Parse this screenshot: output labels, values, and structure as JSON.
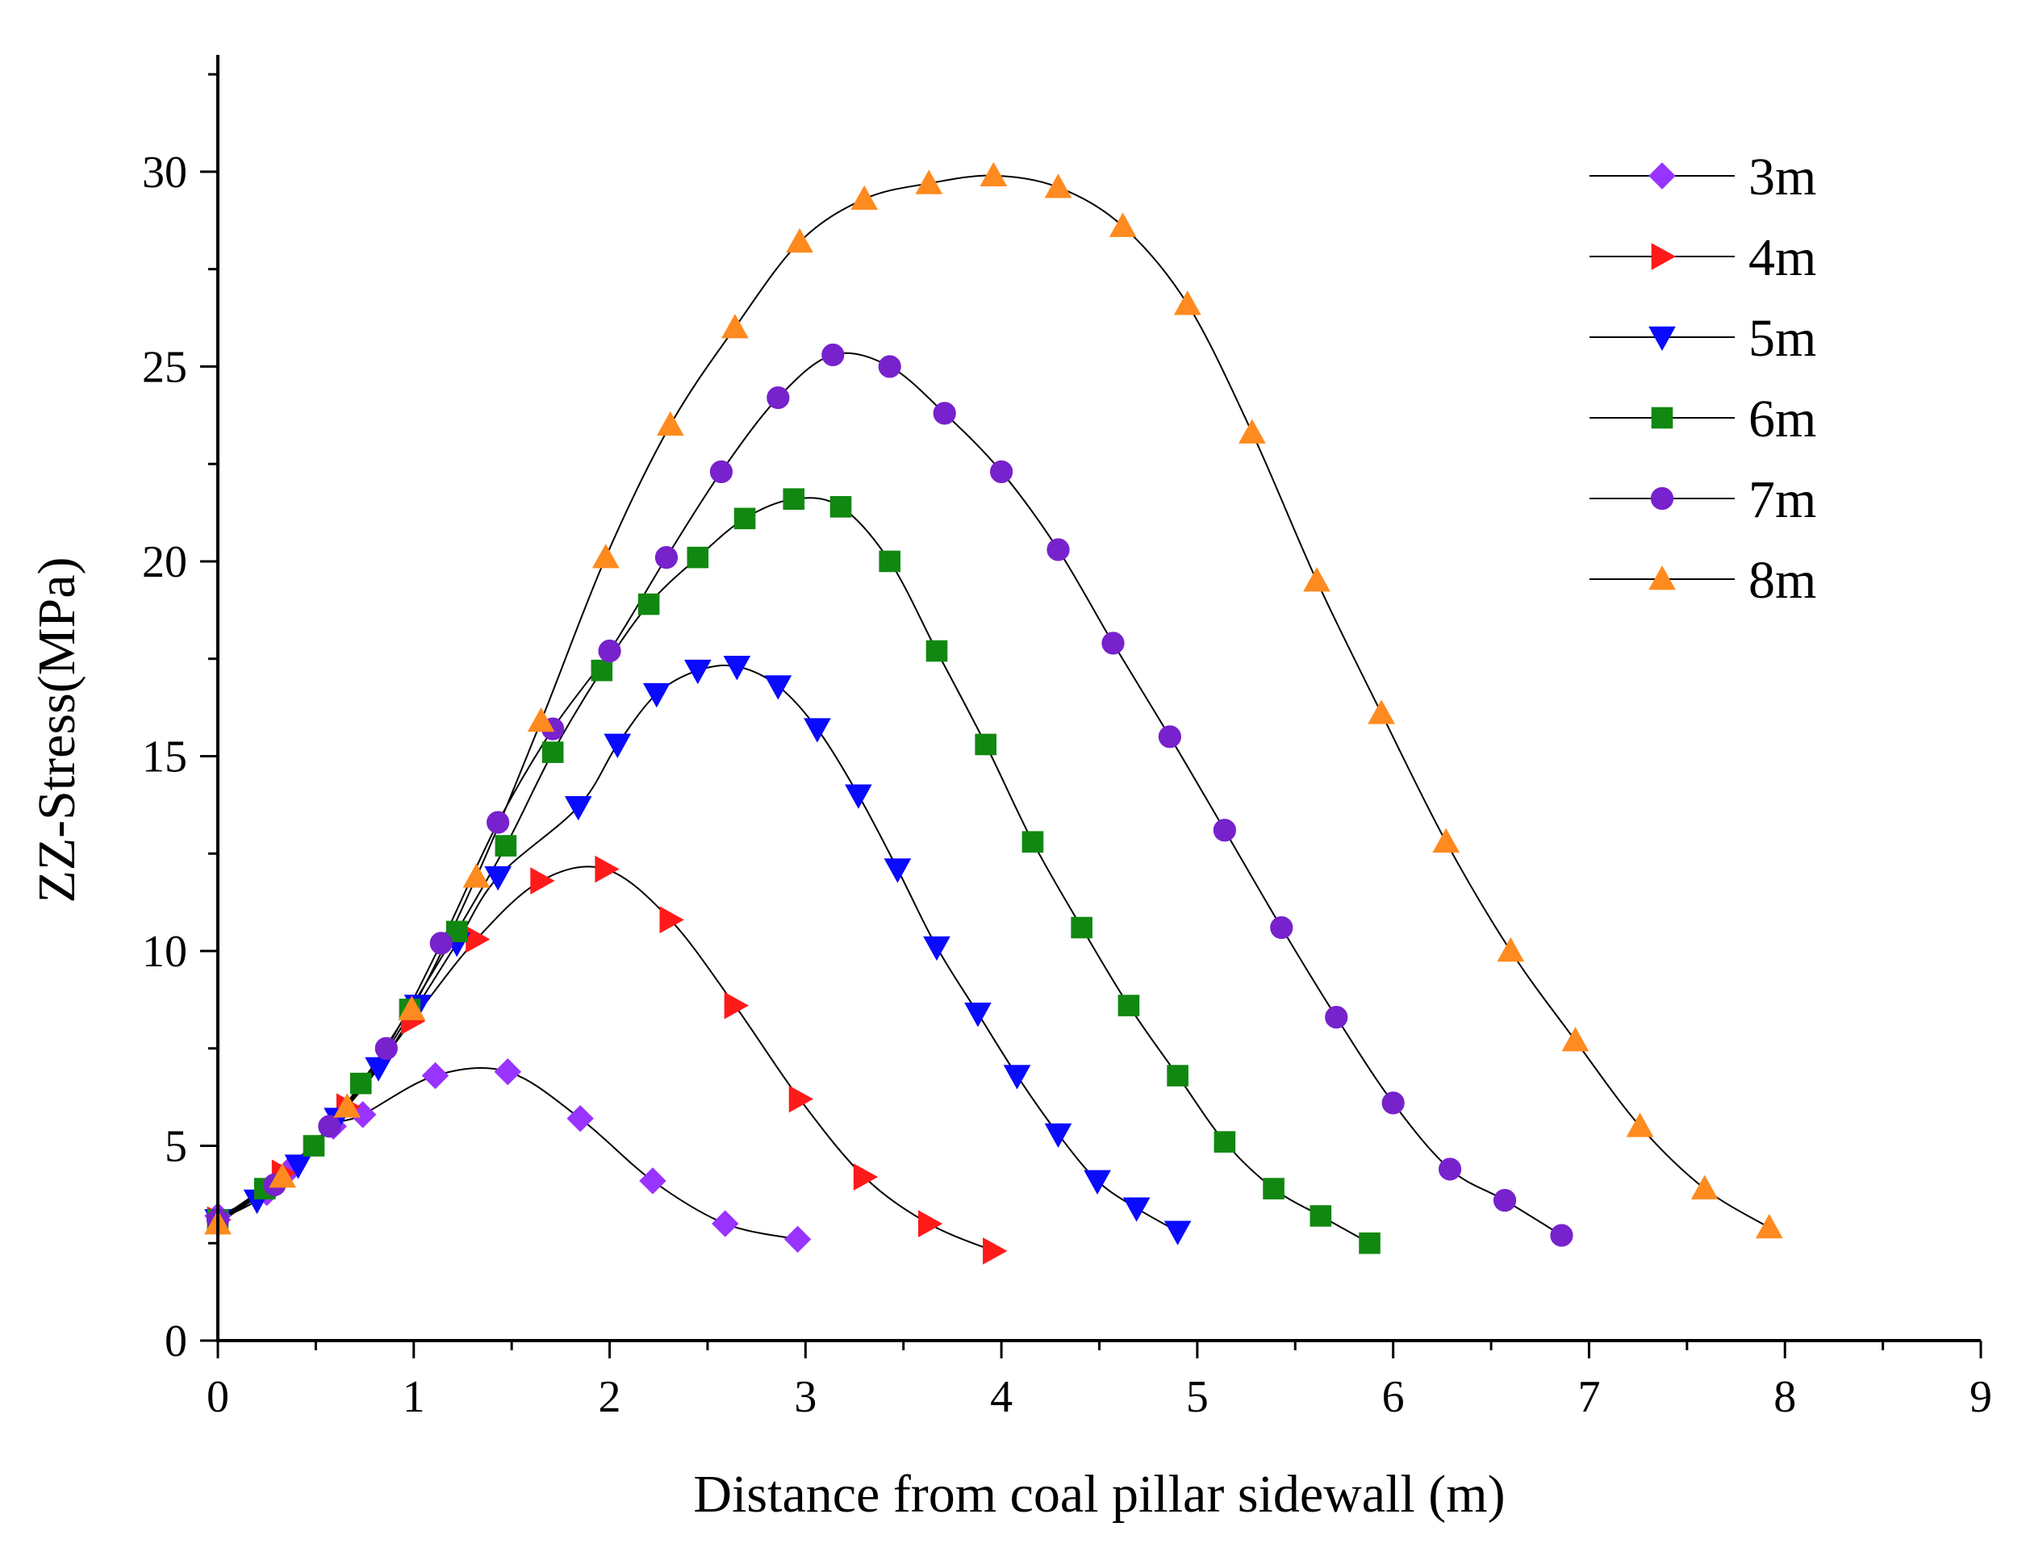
{
  "chart_data": {
    "type": "line",
    "title": "",
    "xlabel": "Distance from coal pillar sidewall (m)",
    "ylabel": "ZZ-Stress(MPa)",
    "xlim": [
      0,
      9
    ],
    "ylim": [
      0,
      33
    ],
    "xticks": [
      0,
      1,
      2,
      3,
      4,
      5,
      6,
      7,
      8,
      9
    ],
    "yticks": [
      0,
      5,
      10,
      15,
      20,
      25,
      30
    ],
    "x_tick_labels": [
      "0",
      "1",
      "2",
      "3",
      "4",
      "5",
      "6",
      "7",
      "8",
      "9"
    ],
    "y_tick_labels": [
      "0",
      "5",
      "10",
      "15",
      "20",
      "25",
      "30"
    ],
    "grid": false,
    "legend_position": "top-right",
    "series": [
      {
        "name": "3m",
        "color": "#9933FF",
        "marker": "diamond",
        "x": [
          0,
          0.25,
          0.37,
          0.59,
          0.74,
          1.11,
          1.48,
          1.85,
          2.22,
          2.59,
          2.96
        ],
        "y": [
          3.2,
          3.8,
          4.4,
          5.5,
          5.8,
          6.8,
          6.9,
          5.7,
          4.1,
          3.0,
          2.6
        ]
      },
      {
        "name": "4m",
        "color": "#FF1A1A",
        "marker": "triangle-right",
        "x": [
          0,
          0.33,
          0.66,
          0.99,
          1.32,
          1.65,
          1.98,
          2.31,
          2.64,
          2.97,
          3.3,
          3.63,
          3.96
        ],
        "y": [
          3.1,
          4.3,
          6.0,
          8.2,
          10.3,
          11.8,
          12.1,
          10.8,
          8.6,
          6.2,
          4.2,
          3.0,
          2.3
        ]
      },
      {
        "name": "5m",
        "color": "#0A0AFF",
        "marker": "triangle-down",
        "x": [
          0,
          0.2,
          0.41,
          0.61,
          0.82,
          1.02,
          1.22,
          1.43,
          1.84,
          2.04,
          2.24,
          2.45,
          2.65,
          2.86,
          3.06,
          3.27,
          3.47,
          3.67,
          3.88,
          4.08,
          4.29,
          4.49,
          4.69,
          4.9
        ],
        "y": [
          3.1,
          3.6,
          4.5,
          5.7,
          7.0,
          8.6,
          10.2,
          11.9,
          13.7,
          15.3,
          16.6,
          17.2,
          17.3,
          16.8,
          15.7,
          14.0,
          12.1,
          10.1,
          8.4,
          6.8,
          5.3,
          4.1,
          3.4,
          2.8
        ]
      },
      {
        "name": "6m",
        "color": "#118811",
        "marker": "square",
        "x": [
          0,
          0.24,
          0.49,
          0.73,
          0.98,
          1.22,
          1.47,
          1.71,
          1.96,
          2.2,
          2.45,
          2.69,
          2.94,
          3.18,
          3.43,
          3.67,
          3.92,
          4.16,
          4.41,
          4.65,
          4.9,
          5.14,
          5.39,
          5.63,
          5.88
        ],
        "y": [
          3.1,
          3.9,
          5.0,
          6.6,
          8.5,
          10.5,
          12.7,
          15.1,
          17.2,
          18.9,
          20.1,
          21.1,
          21.6,
          21.4,
          20.0,
          17.7,
          15.3,
          12.8,
          10.6,
          8.6,
          6.8,
          5.1,
          3.9,
          3.2,
          2.5
        ]
      },
      {
        "name": "7m",
        "color": "#7722CC",
        "marker": "circle",
        "x": [
          0,
          0.29,
          0.57,
          0.86,
          1.14,
          1.43,
          1.71,
          2.0,
          2.29,
          2.57,
          2.86,
          3.14,
          3.43,
          3.71,
          4.0,
          4.29,
          4.57,
          4.86,
          5.14,
          5.43,
          5.71,
          6.0,
          6.29,
          6.57,
          6.86
        ],
        "y": [
          3.1,
          4.0,
          5.5,
          7.5,
          10.2,
          13.3,
          15.7,
          17.7,
          20.1,
          22.3,
          24.2,
          25.3,
          25.0,
          23.8,
          22.3,
          20.3,
          17.9,
          15.5,
          13.1,
          10.6,
          8.3,
          6.1,
          4.4,
          3.6,
          2.7
        ]
      },
      {
        "name": "8m",
        "color": "#FF8A1F",
        "marker": "triangle-up",
        "x": [
          0,
          0.33,
          0.66,
          0.99,
          1.32,
          1.65,
          1.98,
          2.31,
          2.64,
          2.97,
          3.3,
          3.63,
          3.96,
          4.29,
          4.62,
          4.95,
          5.28,
          5.61,
          5.94,
          6.27,
          6.6,
          6.93,
          7.26,
          7.59,
          7.92
        ],
        "y": [
          3.0,
          4.2,
          6.0,
          8.5,
          11.9,
          15.9,
          20.1,
          23.5,
          26.0,
          28.2,
          29.3,
          29.7,
          29.9,
          29.6,
          28.6,
          26.6,
          23.3,
          19.5,
          16.1,
          12.8,
          10.0,
          7.7,
          5.5,
          3.9,
          2.9
        ]
      }
    ]
  }
}
